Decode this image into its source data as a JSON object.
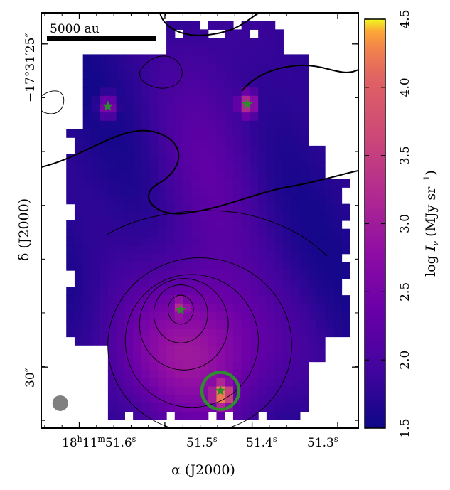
{
  "chart_data": {
    "type": "heatmap",
    "title": "",
    "xlabel": "α (J2000)",
    "ylabel": "δ (J2000)",
    "x_ticks": [
      {
        "h": "18",
        "m": "11",
        "s": "51.6",
        "label": "18h11m51.6s",
        "parts": [
          "18",
          "h",
          "11",
          "m",
          "51.6",
          "s"
        ]
      },
      {
        "label": "51.5s",
        "parts": [
          "51.5",
          "s"
        ]
      },
      {
        "label": "51.4s",
        "parts": [
          "51.4",
          "s"
        ]
      },
      {
        "label": "51.3s",
        "parts": [
          "51.3",
          "s"
        ]
      }
    ],
    "y_ticks": [
      {
        "label": "−17°31′25″",
        "value": "-17:31:25"
      },
      {
        "label": "30″",
        "value": "-17:31:30"
      }
    ],
    "colorbar": {
      "label": "log Iν (MJy sr−1)",
      "label_parts": {
        "pre": "log ",
        "sym": "I",
        "sub": "ν",
        "mid": " (MJy sr",
        "exp": "−1",
        "post": ")"
      },
      "range": [
        1.5,
        4.5
      ],
      "ticks": [
        1.5,
        2.0,
        2.5,
        3.0,
        3.5,
        4.0,
        4.5
      ],
      "colormap": "plasma"
    },
    "scale_bar": {
      "label": "5000 au"
    },
    "image_extent": {
      "x": [
        -1,
        1
      ],
      "y": [
        -1,
        1
      ]
    },
    "sources": [
      {
        "name": "star",
        "x": -0.58,
        "y": 0.55,
        "marker": "star",
        "color": "#2e8b2e"
      },
      {
        "name": "star",
        "x": 0.3,
        "y": 0.56,
        "marker": "star",
        "color": "#2e8b2e"
      },
      {
        "name": "star",
        "x": -0.12,
        "y": -0.43,
        "marker": "star",
        "color": "#2e8b2e"
      },
      {
        "name": "star",
        "x": 0.13,
        "y": -0.82,
        "marker": "star",
        "color": "#2e8b2e",
        "circled": true
      }
    ],
    "beam": {
      "x": -0.88,
      "y": -0.88,
      "color": "#808080"
    },
    "emission_peaks": [
      {
        "x": 0.14,
        "y": -0.84,
        "log_I": 4.5
      },
      {
        "x": -0.12,
        "y": -0.42,
        "log_I": 3.3
      },
      {
        "x": 0.3,
        "y": 0.56,
        "log_I": 3.4
      },
      {
        "x": -0.58,
        "y": 0.55,
        "log_I": 2.8
      }
    ],
    "colors": {
      "marker_green": "#2e8b2e",
      "beam_grey": "#808080"
    }
  }
}
